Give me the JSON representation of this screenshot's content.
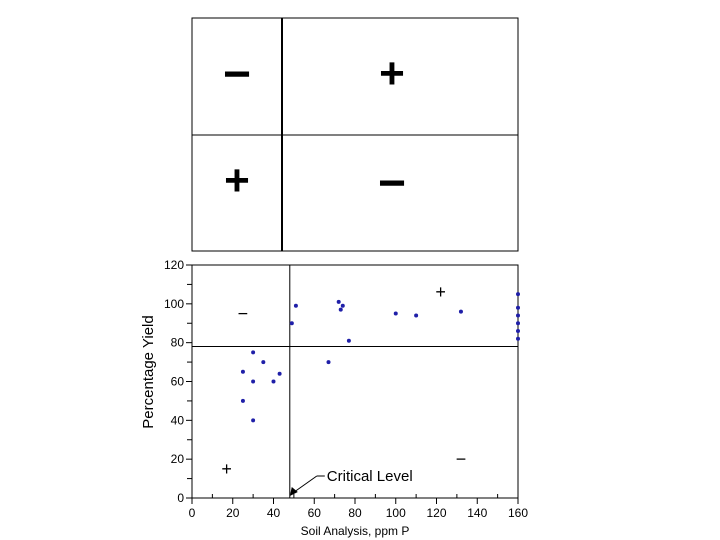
{
  "top_panel": {
    "quadrant_signs": {
      "top_left": "−",
      "top_right": "+",
      "bottom_left": "+",
      "bottom_right": "−"
    }
  },
  "chart_data": {
    "type": "scatter",
    "xlabel": "Soil Analysis, ppm P",
    "ylabel": "Percentage Yield",
    "xlim": [
      0,
      160
    ],
    "ylim": [
      0,
      120
    ],
    "x_ticks": [
      0,
      20,
      40,
      60,
      80,
      100,
      120,
      140,
      160
    ],
    "y_ticks": [
      0,
      20,
      40,
      60,
      80,
      100,
      120
    ],
    "critical_x": 48,
    "critical_y": 78,
    "point_color": "#1f1fa8",
    "annotation": {
      "text": "Critical Level",
      "x": 48,
      "y": 0
    },
    "quadrant_labels": [
      {
        "text": "−",
        "x": 25,
        "y": 95
      },
      {
        "text": "+",
        "x": 122,
        "y": 106
      },
      {
        "text": "+",
        "x": 17,
        "y": 15
      },
      {
        "text": "−",
        "x": 132,
        "y": 20
      }
    ],
    "points": [
      {
        "x": 25,
        "y": 65
      },
      {
        "x": 25,
        "y": 50
      },
      {
        "x": 30,
        "y": 75
      },
      {
        "x": 30,
        "y": 60
      },
      {
        "x": 30,
        "y": 40
      },
      {
        "x": 35,
        "y": 70
      },
      {
        "x": 40,
        "y": 60
      },
      {
        "x": 43,
        "y": 64
      },
      {
        "x": 49,
        "y": 90
      },
      {
        "x": 51,
        "y": 99
      },
      {
        "x": 67,
        "y": 70
      },
      {
        "x": 72,
        "y": 101
      },
      {
        "x": 73,
        "y": 97
      },
      {
        "x": 74,
        "y": 99
      },
      {
        "x": 77,
        "y": 81
      },
      {
        "x": 100,
        "y": 95
      },
      {
        "x": 110,
        "y": 94
      },
      {
        "x": 132,
        "y": 96
      },
      {
        "x": 160,
        "y": 105
      },
      {
        "x": 160,
        "y": 98
      },
      {
        "x": 160,
        "y": 94
      },
      {
        "x": 160,
        "y": 90
      },
      {
        "x": 160,
        "y": 86
      },
      {
        "x": 160,
        "y": 82
      }
    ]
  }
}
